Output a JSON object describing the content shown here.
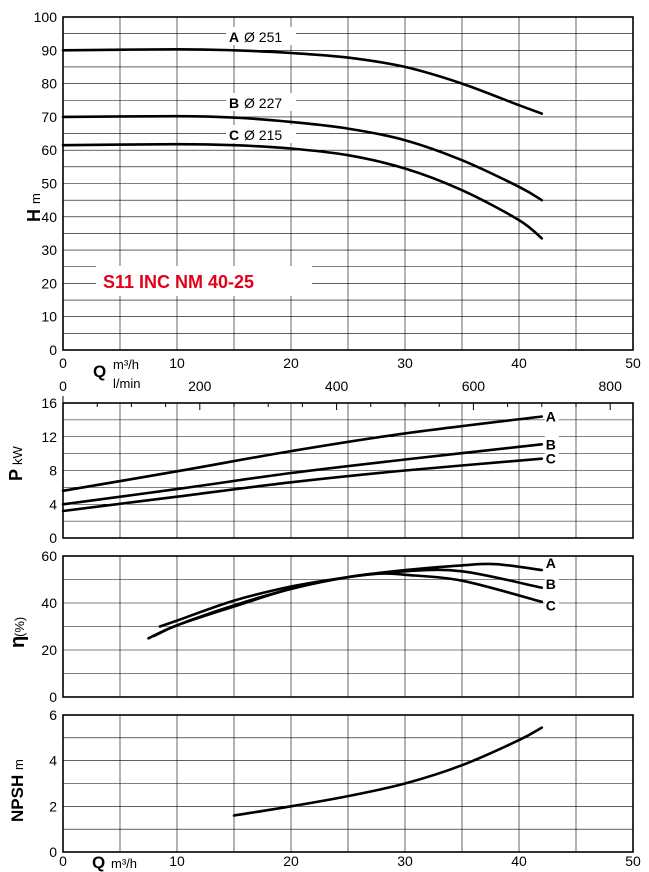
{
  "chart_data": [
    {
      "type": "line",
      "panel": "head",
      "title": "S11 INC NM 40-25",
      "ylabel": "H",
      "yunit": "m",
      "xlabel": "Q",
      "xunit": "m³/h",
      "x2unit": "l/min",
      "xlim": [
        0,
        50
      ],
      "ylim": [
        0,
        100
      ],
      "xticks": [
        "0",
        "10",
        "20",
        "30",
        "40",
        "50"
      ],
      "yticks": [
        "0",
        "10",
        "20",
        "30",
        "40",
        "50",
        "60",
        "70",
        "80",
        "90",
        "100"
      ],
      "x2ticks": [
        "0",
        "200",
        "400",
        "600",
        "800"
      ],
      "x2values": [
        0,
        200,
        400,
        600,
        800
      ],
      "grid": true,
      "series": [
        {
          "name": "A",
          "diameter": "Ø 251",
          "x": [
            0,
            10,
            15,
            20,
            25,
            30,
            35,
            40,
            42
          ],
          "y": [
            90,
            90.3,
            90,
            89.2,
            87.8,
            85,
            80,
            73.5,
            71
          ]
        },
        {
          "name": "B",
          "diameter": "Ø 227",
          "x": [
            0,
            10,
            15,
            20,
            25,
            30,
            35,
            40,
            42
          ],
          "y": [
            70,
            70.2,
            69.8,
            68.5,
            66.5,
            63,
            57,
            49,
            45
          ]
        },
        {
          "name": "C",
          "diameter": "Ø 215",
          "x": [
            0,
            10,
            15,
            20,
            25,
            30,
            35,
            40,
            42
          ],
          "y": [
            61.5,
            61.8,
            61.5,
            60.5,
            58.5,
            54.5,
            48,
            39,
            33.5
          ]
        }
      ]
    },
    {
      "type": "line",
      "panel": "power",
      "ylabel": "P",
      "yunit": "kW",
      "xlim": [
        0,
        50
      ],
      "ylim": [
        0,
        16
      ],
      "yticks": [
        "0",
        "4",
        "8",
        "12",
        "16"
      ],
      "grid": true,
      "series": [
        {
          "name": "A",
          "x": [
            0,
            10,
            20,
            30,
            42
          ],
          "y": [
            5.6,
            7.9,
            10.3,
            12.4,
            14.4
          ]
        },
        {
          "name": "B",
          "x": [
            0,
            10,
            20,
            30,
            42
          ],
          "y": [
            4.0,
            5.8,
            7.7,
            9.3,
            11.1
          ]
        },
        {
          "name": "C",
          "x": [
            0,
            10,
            20,
            30,
            42
          ],
          "y": [
            3.2,
            4.9,
            6.6,
            8.0,
            9.4
          ]
        }
      ]
    },
    {
      "type": "line",
      "panel": "efficiency",
      "ylabel": "η",
      "yunit": "(%)",
      "xlim": [
        0,
        50
      ],
      "ylim": [
        0,
        60
      ],
      "yticks": [
        "0",
        "20",
        "40",
        "60"
      ],
      "grid": true,
      "series": [
        {
          "name": "A",
          "x": [
            7.5,
            10,
            15,
            20,
            25,
            30,
            35,
            38,
            42
          ],
          "y": [
            25,
            30.5,
            38.5,
            46,
            51,
            54,
            56,
            56.5,
            54
          ]
        },
        {
          "name": "B",
          "x": [
            8,
            10,
            15,
            20,
            25,
            30,
            35,
            42
          ],
          "y": [
            26,
            30.5,
            39,
            46,
            51,
            53.5,
            53.5,
            46.5
          ]
        },
        {
          "name": "C",
          "x": [
            8.5,
            10,
            15,
            20,
            25,
            28,
            30,
            35,
            42
          ],
          "y": [
            30,
            32.5,
            41,
            47,
            51,
            52.5,
            52,
            49.5,
            40.5
          ]
        }
      ]
    },
    {
      "type": "line",
      "panel": "npsh",
      "ylabel": "NPSH",
      "yunit": "m",
      "xlabel": "Q",
      "xunit": "m³/h",
      "xlim": [
        0,
        50
      ],
      "ylim": [
        0,
        6
      ],
      "xticks": [
        "0",
        "10",
        "20",
        "30",
        "40",
        "50"
      ],
      "yticks": [
        "0",
        "2",
        "4",
        "6"
      ],
      "grid": true,
      "series": [
        {
          "name": "",
          "x": [
            15,
            20,
            25,
            30,
            35,
            40,
            42
          ],
          "y": [
            1.6,
            2.0,
            2.45,
            3.0,
            3.8,
            4.9,
            5.45
          ]
        }
      ]
    }
  ]
}
